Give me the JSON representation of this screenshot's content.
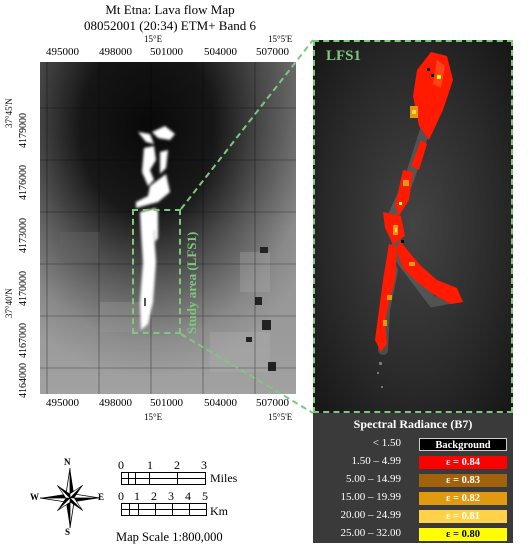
{
  "title": {
    "line1": "Mt Etna: Lava flow Map",
    "line2": "08052001 (20:34) ETM+ Band 6"
  },
  "axes": {
    "top_easting": [
      "495000",
      "498000",
      "501000",
      "504000",
      "507000"
    ],
    "bottom_easting": [
      "495000",
      "498000",
      "501000",
      "504000",
      "507000"
    ],
    "top_lon": [
      "15°E",
      "15°5'E"
    ],
    "bottom_lon": [
      "15°E",
      "15°5'E"
    ],
    "left_northing": [
      "4179000",
      "4176000",
      "4173000",
      "4170000",
      "4167000",
      "4164000"
    ],
    "left_lat": [
      "37°45'N",
      "37°40'N"
    ]
  },
  "labels": {
    "study_area": "Study area (LFS1)",
    "zoom_title": "LFS1"
  },
  "legend": {
    "title": "Spectral Radiance (B7)",
    "items": [
      {
        "range": "< 1.50",
        "label": "Background",
        "color": "#000000",
        "text_color": "#ffffff"
      },
      {
        "range": "1.50 – 4.99",
        "label": "ε = 0.84",
        "color": "#ff0000",
        "text_color": "#ffffff"
      },
      {
        "range": "5.00 – 14.99",
        "label": "ε = 0.83",
        "color": "#a0620a",
        "text_color": "#ffffff"
      },
      {
        "range": "15.00 – 19.99",
        "label": "ε = 0.82",
        "color": "#e09a10",
        "text_color": "#ffffff"
      },
      {
        "range": "20.00 – 24.99",
        "label": "ε = 0.81",
        "color": "#ffd24a",
        "text_color": "#ffffff"
      },
      {
        "range": "25.00 – 32.00",
        "label": "ε = 0.80",
        "color": "#ffff00",
        "text_color": "#000000"
      }
    ]
  },
  "compass": {
    "n": "N",
    "s": "S",
    "e": "E",
    "w": "W"
  },
  "scalebar": {
    "miles_ticks": [
      "0",
      "1",
      "2",
      "3"
    ],
    "miles_unit": "Miles",
    "km_ticks": [
      "0",
      "1",
      "2",
      "3",
      "4",
      "5"
    ],
    "km_unit": "Km",
    "scale_text": "Map Scale 1:800,000"
  },
  "colors": {
    "study_box": "#7ec87e"
  }
}
